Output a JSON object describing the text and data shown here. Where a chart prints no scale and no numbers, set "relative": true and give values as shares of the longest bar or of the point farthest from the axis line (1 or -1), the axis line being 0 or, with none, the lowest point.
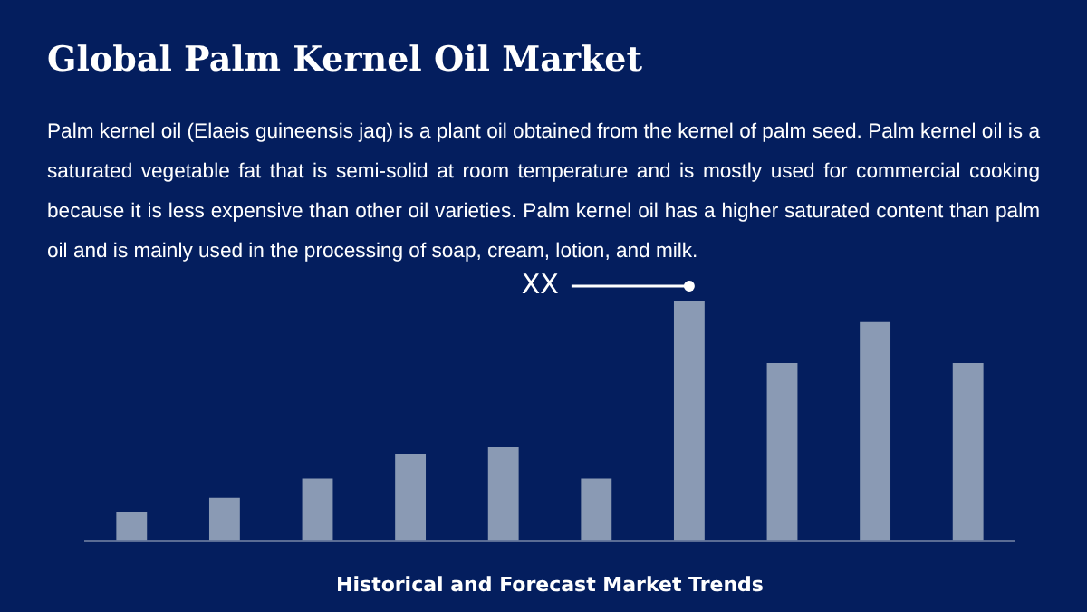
{
  "chart_data": {
    "type": "bar",
    "title": "Global Palm Kernel Oil Market",
    "subtitle": "Palm kernel oil (Elaeis guineensis jaq) is a plant oil obtained from the kernel of palm seed. Palm kernel oil is a saturated vegetable fat that is semi-solid at room temperature and is mostly used for commercial cooking because it is less expensive than other oil varieties. Palm kernel oil has a higher saturated content than palm oil and is mainly used in the processing of soap, cream, lotion, and milk.",
    "xlabel": "Historical and Forecast Market Trends",
    "relative": true,
    "categories": [
      null,
      null,
      null,
      null,
      null,
      null,
      null,
      null,
      null,
      null
    ],
    "values": [
      0.12,
      0.18,
      0.26,
      0.36,
      0.39,
      0.26,
      1,
      0.74,
      0.91,
      0.74
    ],
    "color": "#8a9ab4",
    "annotations": [
      "XX"
    ],
    "grid": false,
    "legend": false
  }
}
